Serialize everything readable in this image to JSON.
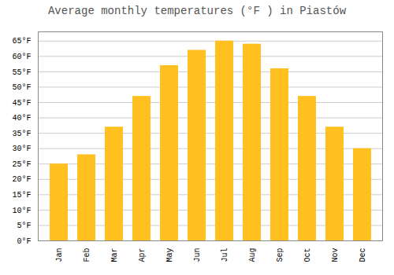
{
  "chart_data": {
    "type": "bar",
    "title": "Average monthly temperatures (°F ) in Piastów",
    "categories": [
      "Jan",
      "Feb",
      "Mar",
      "Apr",
      "May",
      "Jun",
      "Jul",
      "Aug",
      "Sep",
      "Oct",
      "Nov",
      "Dec"
    ],
    "values": [
      25,
      28,
      37,
      47,
      57,
      62,
      65,
      64,
      56,
      47,
      37,
      30
    ],
    "color": "#FFC020",
    "ylim": [
      0,
      68
    ],
    "yticks": [
      {
        "value": 0,
        "label": "0°F"
      },
      {
        "value": 5,
        "label": "5°F"
      },
      {
        "value": 10,
        "label": "10°F"
      },
      {
        "value": 15,
        "label": "15°F"
      },
      {
        "value": 20,
        "label": "20°F"
      },
      {
        "value": 25,
        "label": "25°F"
      },
      {
        "value": 30,
        "label": "30°F"
      },
      {
        "value": 35,
        "label": "35°F"
      },
      {
        "value": 40,
        "label": "40°F"
      },
      {
        "value": 45,
        "label": "45°F"
      },
      {
        "value": 50,
        "label": "50°F"
      },
      {
        "value": 55,
        "label": "55°F"
      },
      {
        "value": 60,
        "label": "60°F"
      },
      {
        "value": 65,
        "label": "65°F"
      }
    ],
    "grid": true
  }
}
